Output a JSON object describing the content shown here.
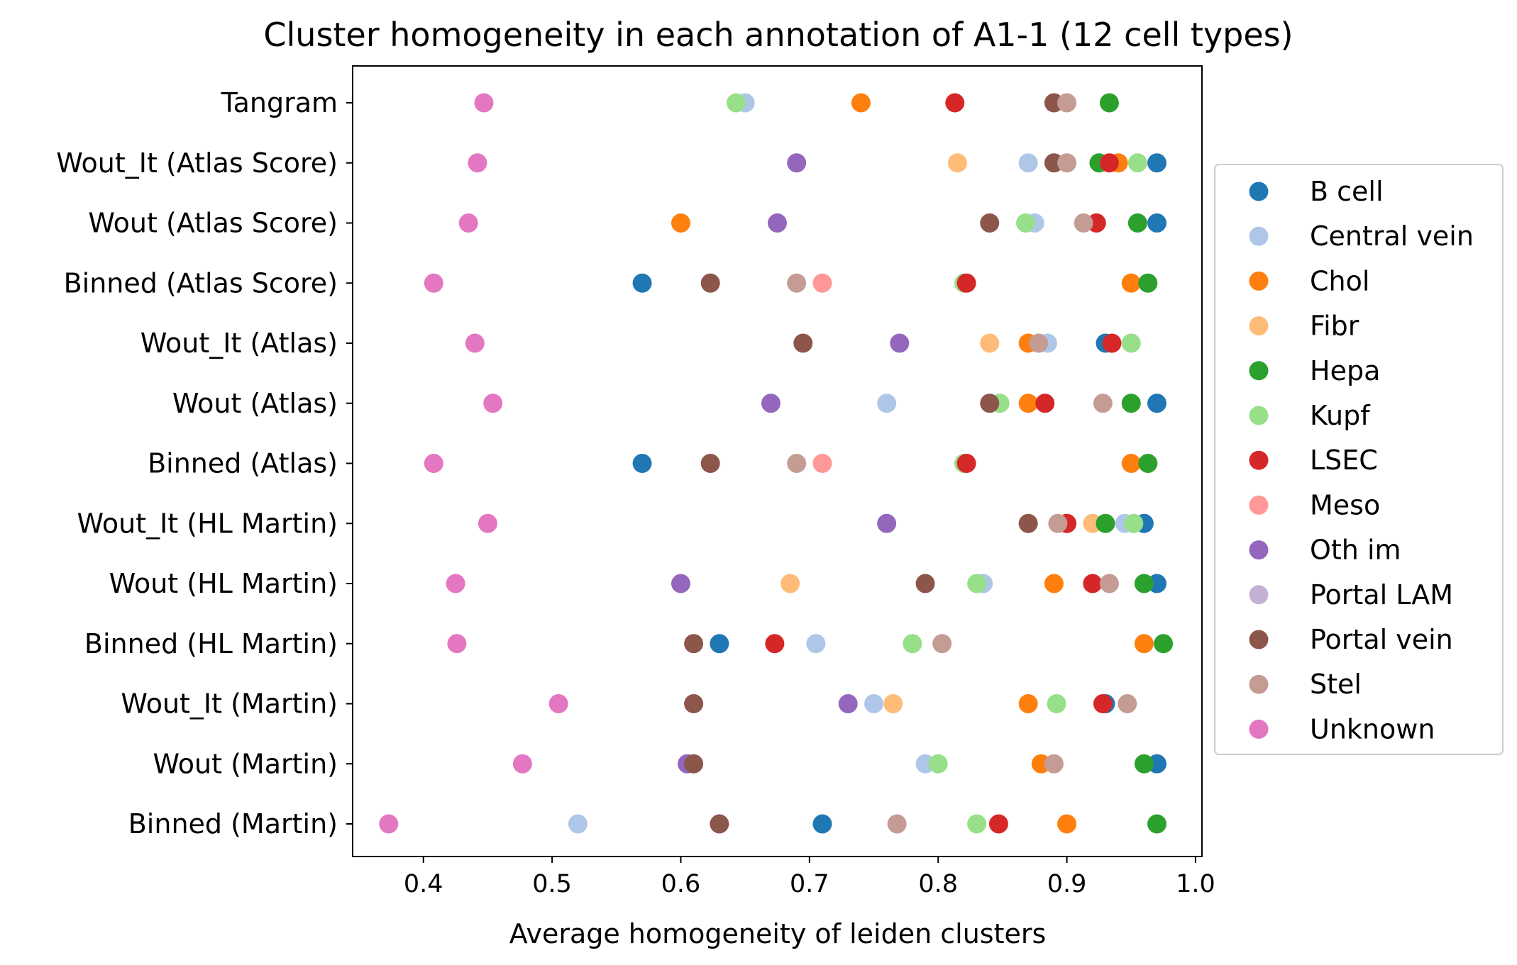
{
  "chart_data": {
    "type": "scatter",
    "title": "Cluster homogeneity in each annotation of A1-1 (12 cell types)",
    "xlabel": "Average homogeneity of leiden clusters",
    "ylabel": "",
    "xlim": [
      0.345,
      1.005
    ],
    "xticks": [
      "0.4",
      "0.5",
      "0.6",
      "0.7",
      "0.8",
      "0.9",
      "1.0"
    ],
    "xtick_values": [
      0.4,
      0.5,
      0.6,
      0.7,
      0.8,
      0.9,
      1.0
    ],
    "categories": [
      "Tangram",
      "Wout_It (Atlas Score)",
      "Wout (Atlas Score)",
      "Binned (Atlas Score)",
      "Wout_It (Atlas)",
      "Wout (Atlas)",
      "Binned (Atlas)",
      "Wout_It (HL Martin)",
      "Wout (HL Martin)",
      "Binned (HL Martin)",
      "Wout_It (Martin)",
      "Wout (Martin)",
      "Binned (Martin)"
    ],
    "grid": false,
    "legend_position": "right",
    "series": [
      {
        "name": "B cell",
        "color": "#1f77b4",
        "values": [
          null,
          0.97,
          0.97,
          0.57,
          0.93,
          0.97,
          0.57,
          0.96,
          0.97,
          0.63,
          0.93,
          0.97,
          0.71
        ]
      },
      {
        "name": "Central vein",
        "color": "#aec7e8",
        "values": [
          0.65,
          0.87,
          0.875,
          null,
          0.885,
          0.76,
          null,
          0.945,
          0.835,
          0.705,
          0.75,
          0.79,
          0.52
        ]
      },
      {
        "name": "Chol",
        "color": "#ff7f0e",
        "values": [
          0.74,
          0.94,
          0.6,
          0.95,
          0.87,
          0.87,
          0.95,
          0.9,
          0.89,
          0.96,
          0.87,
          0.88,
          0.9
        ]
      },
      {
        "name": "Fibr",
        "color": "#ffbb78",
        "values": [
          null,
          0.815,
          null,
          null,
          0.84,
          null,
          null,
          0.92,
          0.685,
          null,
          0.765,
          null,
          null
        ]
      },
      {
        "name": "Hepa",
        "color": "#2ca02c",
        "values": [
          0.933,
          0.925,
          0.955,
          0.963,
          null,
          0.95,
          0.963,
          0.93,
          0.96,
          0.975,
          null,
          0.96,
          0.97
        ]
      },
      {
        "name": "Kupf",
        "color": "#98df8a",
        "values": [
          0.643,
          0.955,
          0.868,
          0.82,
          0.95,
          0.848,
          0.82,
          0.952,
          0.83,
          0.78,
          0.892,
          0.8,
          0.83
        ]
      },
      {
        "name": "LSEC",
        "color": "#d62728",
        "values": [
          0.813,
          0.933,
          0.923,
          0.822,
          0.935,
          0.883,
          0.822,
          0.9,
          0.92,
          0.673,
          0.928,
          null,
          0.847
        ]
      },
      {
        "name": "Meso",
        "color": "#ff9896",
        "values": [
          null,
          null,
          null,
          0.71,
          null,
          null,
          0.71,
          null,
          null,
          null,
          null,
          null,
          null
        ]
      },
      {
        "name": "Oth im",
        "color": "#9467bd",
        "values": [
          null,
          0.69,
          0.675,
          null,
          0.77,
          0.67,
          null,
          0.76,
          0.6,
          null,
          0.73,
          0.605,
          null
        ]
      },
      {
        "name": "Portal LAM",
        "color": "#c5b0d5",
        "values": [
          null,
          null,
          null,
          null,
          null,
          null,
          null,
          null,
          null,
          null,
          null,
          null,
          null
        ]
      },
      {
        "name": "Portal vein",
        "color": "#8c564b",
        "values": [
          0.89,
          0.89,
          0.84,
          0.623,
          0.695,
          0.84,
          0.623,
          0.87,
          0.79,
          0.61,
          0.61,
          0.61,
          0.63
        ]
      },
      {
        "name": "Stel",
        "color": "#c49c94",
        "values": [
          0.9,
          0.9,
          0.913,
          0.69,
          0.878,
          0.928,
          0.69,
          0.893,
          0.933,
          0.803,
          0.947,
          0.89,
          0.768
        ]
      },
      {
        "name": "Unknown",
        "color": "#e377c2",
        "values": [
          0.447,
          0.442,
          0.435,
          0.408,
          0.44,
          0.454,
          0.408,
          0.45,
          0.425,
          0.426,
          0.505,
          0.477,
          0.373
        ]
      }
    ]
  }
}
